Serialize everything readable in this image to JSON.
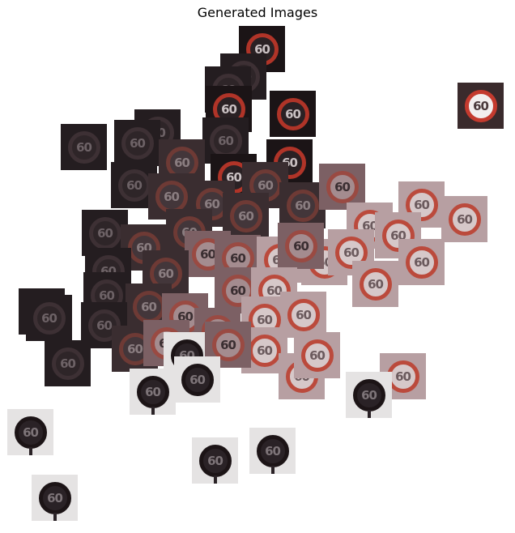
{
  "title": "Generated Images",
  "sign_text": "60",
  "palette": {
    "dark": "#1b1416",
    "dark_brown": "#3a2a2c",
    "mauve": "#7a5e62",
    "pink_gray": "#b59a9d",
    "light": "#e9e6e6",
    "red_ring": "#b2362a",
    "dark_ring": "#1c1416"
  }
}
